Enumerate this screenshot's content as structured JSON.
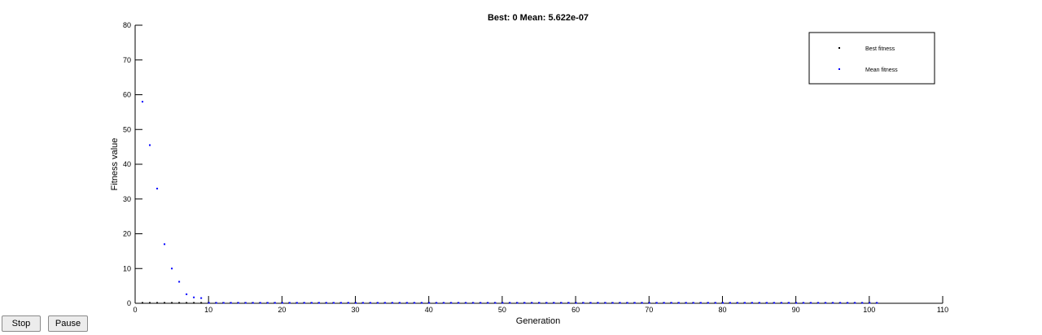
{
  "controls": {
    "stop_label": "Stop",
    "pause_label": "Pause"
  },
  "chart_data": {
    "type": "scatter",
    "title": "Best: 0 Mean: 5.622e-07",
    "xlabel": "Generation",
    "ylabel": "Fitness value",
    "xlim": [
      0,
      110
    ],
    "ylim": [
      0,
      80
    ],
    "xticks": [
      0,
      10,
      20,
      30,
      40,
      50,
      60,
      70,
      80,
      90,
      100,
      110
    ],
    "yticks": [
      0,
      10,
      20,
      30,
      40,
      50,
      60,
      70,
      80
    ],
    "legend_position": "top-right",
    "grid": false,
    "series": [
      {
        "name": "Best fitness",
        "color": "#000000",
        "x_start": 1,
        "x_end": 101,
        "values_note": "",
        "constant_value": 0
      },
      {
        "name": "Mean fitness",
        "color": "#0000ff",
        "x": [
          1,
          2,
          3,
          4,
          5,
          6,
          7,
          8,
          9
        ],
        "y": [
          58,
          45.5,
          33,
          17,
          10,
          6.2,
          2.6,
          1.7,
          1.5
        ],
        "tail_x_start": 10,
        "tail_x_end": 101,
        "tail_value": 0
      }
    ]
  }
}
